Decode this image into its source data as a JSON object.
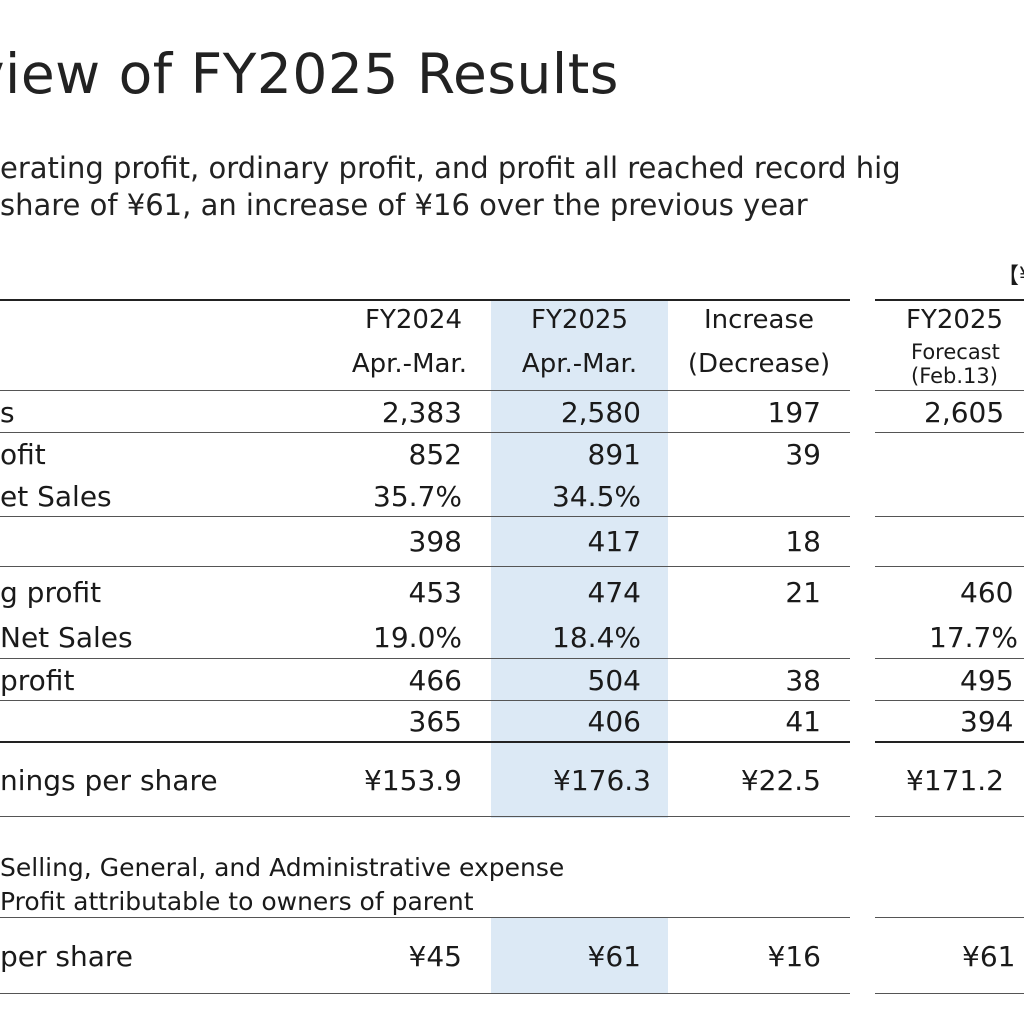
{
  "title": "view of FY2025 Results",
  "subtitle": {
    "line1": "erating profit, ordinary profit, and profit all reached record hig",
    "line2": "share of ¥61, an increase of ¥16 over the previous year"
  },
  "unit_note": "【¥",
  "columns": {
    "fy2024": {
      "line1": "FY2024",
      "line2": "Apr.-Mar."
    },
    "fy2025": {
      "line1": "FY2025",
      "line2": "Apr.-Mar."
    },
    "increase": {
      "line1": "Increase",
      "line2": "(Decrease)"
    },
    "forecast": {
      "line1": "FY2025",
      "line2": "Forecast",
      "line3": "(Feb.13)"
    }
  },
  "rows": [
    {
      "label": "s",
      "fy2024": "2,383",
      "fy2025": "2,580",
      "change": "197",
      "forecast": "2,605"
    },
    {
      "label": "ofit",
      "fy2024": "852",
      "fy2025": "891",
      "change": "39",
      "forecast": ""
    },
    {
      "label": "et Sales",
      "fy2024": "35.7%",
      "fy2025": "34.5%",
      "change": "",
      "forecast": ""
    },
    {
      "label": "",
      "fy2024": "398",
      "fy2025": "417",
      "change": "18",
      "forecast": ""
    },
    {
      "label": "g profit",
      "fy2024": "453",
      "fy2025": "474",
      "change": "21",
      "forecast": "460"
    },
    {
      "label": "Net Sales",
      "fy2024": "19.0%",
      "fy2025": "18.4%",
      "change": "",
      "forecast": "17.7%"
    },
    {
      "label": " profit",
      "fy2024": "466",
      "fy2025": "504",
      "change": "38",
      "forecast": "495"
    },
    {
      "label": "",
      "fy2024": "365",
      "fy2025": "406",
      "change": "41",
      "forecast": "394"
    },
    {
      "label": "nings per share",
      "fy2024": "¥153.9",
      "fy2025": "¥176.3",
      "change": "¥22.5",
      "forecast": "¥171.2"
    }
  ],
  "notes": {
    "line1": "Selling, General, and Administrative expense",
    "line2": "Profit attributable to owners of parent"
  },
  "dividend": {
    "label": "per share",
    "fy2024": "¥45",
    "fy2025": "¥61",
    "change": "¥16",
    "forecast": "¥61"
  }
}
